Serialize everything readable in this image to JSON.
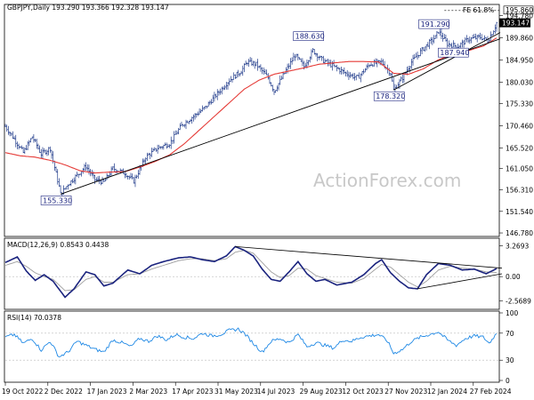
{
  "chart_data": [
    {
      "type": "candlestick",
      "header": "GBPJPY,Daily  193.290 193.366 192.328 193.147",
      "last_price": "193.147",
      "watermark": "ActionForex.com",
      "y_ticks": [
        "199.690",
        "194.780",
        "189.860",
        "184.950",
        "180.030",
        "175.330",
        "170.460",
        "165.520",
        "161.050",
        "156.310",
        "151.540",
        "146.780"
      ],
      "ylim": [
        146.2,
        197.0
      ],
      "x_ticks": [
        "19 Oct 2022",
        "2 Dec 2022",
        "17 Jan 2023",
        "2 Mar 2023",
        "17 Apr 2023",
        "31 May 2023",
        "14 Jul 2023",
        "29 Aug 2023",
        "12 Oct 2023",
        "27 Nov 2023",
        "12 Jan 2024",
        "27 Feb 2024"
      ],
      "annotations": [
        {
          "text": "155.330",
          "x": 37,
          "y": 155.33
        },
        {
          "text": "188.630",
          "x": 206,
          "y": 188.63
        },
        {
          "text": "178.320",
          "x": 260,
          "y": 178.32
        },
        {
          "text": "191.290",
          "x": 290,
          "y": 191.29
        },
        {
          "text": "187.940",
          "x": 303,
          "y": 187.94
        },
        {
          "text": "FE 61.8% 195.860",
          "x": 336,
          "y": 195.86
        }
      ],
      "price_anchors": [
        [
          0,
          170.3
        ],
        [
          6,
          167.5
        ],
        [
          12,
          164.5
        ],
        [
          18,
          168.0
        ],
        [
          24,
          164.2
        ],
        [
          30,
          165.5
        ],
        [
          36,
          157.0
        ],
        [
          37,
          155.33
        ],
        [
          42,
          157.5
        ],
        [
          48,
          159.5
        ],
        [
          54,
          161.5
        ],
        [
          60,
          158.5
        ],
        [
          66,
          158.0
        ],
        [
          72,
          161.0
        ],
        [
          80,
          160.0
        ],
        [
          86,
          158.2
        ],
        [
          94,
          163.5
        ],
        [
          102,
          165.5
        ],
        [
          110,
          166.5
        ],
        [
          118,
          170.5
        ],
        [
          126,
          172.5
        ],
        [
          134,
          174.5
        ],
        [
          142,
          177.5
        ],
        [
          150,
          180.5
        ],
        [
          158,
          182.5
        ],
        [
          162,
          184.5
        ],
        [
          168,
          184.0
        ],
        [
          176,
          181.0
        ],
        [
          180,
          178.0
        ],
        [
          186,
          181.5
        ],
        [
          194,
          186.0
        ],
        [
          200,
          183.5
        ],
        [
          206,
          187.0
        ],
        [
          212,
          185.0
        ],
        [
          220,
          183.5
        ],
        [
          228,
          182.0
        ],
        [
          236,
          181.0
        ],
        [
          244,
          184.0
        ],
        [
          252,
          184.5
        ],
        [
          258,
          182.0
        ],
        [
          260,
          178.32
        ],
        [
          266,
          181.0
        ],
        [
          272,
          184.5
        ],
        [
          280,
          187.5
        ],
        [
          288,
          190.0
        ],
        [
          290,
          191.29
        ],
        [
          296,
          188.5
        ],
        [
          303,
          187.94
        ],
        [
          310,
          189.5
        ],
        [
          318,
          190.0
        ],
        [
          323,
          189.2
        ],
        [
          327,
          191.5
        ],
        [
          329,
          193.147
        ]
      ],
      "ma_anchors": [
        [
          0,
          164.5
        ],
        [
          10,
          163.8
        ],
        [
          20,
          163.5
        ],
        [
          30,
          162.8
        ],
        [
          40,
          161.8
        ],
        [
          50,
          160.5
        ],
        [
          60,
          160.0
        ],
        [
          70,
          160.2
        ],
        [
          80,
          160.3
        ],
        [
          90,
          161.3
        ],
        [
          100,
          162.5
        ],
        [
          110,
          164.0
        ],
        [
          120,
          166.5
        ],
        [
          130,
          169.5
        ],
        [
          140,
          172.5
        ],
        [
          150,
          175.5
        ],
        [
          160,
          178.5
        ],
        [
          170,
          180.5
        ],
        [
          180,
          181.8
        ],
        [
          190,
          182.5
        ],
        [
          200,
          183.2
        ],
        [
          210,
          184.0
        ],
        [
          220,
          184.3
        ],
        [
          230,
          184.6
        ],
        [
          240,
          184.6
        ],
        [
          250,
          184.5
        ],
        [
          260,
          182.0
        ],
        [
          270,
          181.8
        ],
        [
          280,
          183.0
        ],
        [
          290,
          185.0
        ],
        [
          300,
          186.2
        ],
        [
          310,
          187.0
        ],
        [
          320,
          188.0
        ],
        [
          329,
          189.8
        ]
      ],
      "trendlines": [
        {
          "x1": 37,
          "y1": 155.33,
          "x2": 329,
          "y2": 189.6
        },
        {
          "x1": 260,
          "y1": 178.32,
          "x2": 329,
          "y2": 191.0
        }
      ]
    },
    {
      "type": "line",
      "header": "MACD(12,26,9)  0.8543 0.4438",
      "y_ticks": [
        "3.2693",
        "0.00",
        "-2.5689"
      ],
      "ylim": [
        -3.3,
        3.9
      ],
      "macd_anchors": [
        [
          0,
          1.5
        ],
        [
          8,
          2.1
        ],
        [
          14,
          0.6
        ],
        [
          20,
          -0.4
        ],
        [
          26,
          0.2
        ],
        [
          32,
          -0.5
        ],
        [
          40,
          -2.2
        ],
        [
          46,
          -1.3
        ],
        [
          54,
          0.5
        ],
        [
          60,
          0.2
        ],
        [
          66,
          -1.0
        ],
        [
          72,
          -0.7
        ],
        [
          82,
          0.7
        ],
        [
          90,
          0.3
        ],
        [
          98,
          1.2
        ],
        [
          106,
          1.6
        ],
        [
          116,
          2.0
        ],
        [
          124,
          2.1
        ],
        [
          132,
          1.8
        ],
        [
          140,
          1.6
        ],
        [
          148,
          2.2
        ],
        [
          154,
          3.2
        ],
        [
          160,
          2.8
        ],
        [
          166,
          2.2
        ],
        [
          172,
          0.8
        ],
        [
          178,
          -0.3
        ],
        [
          184,
          -0.5
        ],
        [
          190,
          0.5
        ],
        [
          196,
          1.6
        ],
        [
          202,
          0.3
        ],
        [
          208,
          -0.5
        ],
        [
          214,
          -0.3
        ],
        [
          222,
          -0.9
        ],
        [
          232,
          -0.6
        ],
        [
          240,
          0.2
        ],
        [
          248,
          1.4
        ],
        [
          252,
          1.8
        ],
        [
          258,
          0.4
        ],
        [
          264,
          -0.5
        ],
        [
          270,
          -1.2
        ],
        [
          276,
          -1.3
        ],
        [
          282,
          0.2
        ],
        [
          290,
          1.4
        ],
        [
          298,
          1.2
        ],
        [
          306,
          0.7
        ],
        [
          314,
          0.8
        ],
        [
          322,
          0.3
        ],
        [
          329,
          0.85
        ]
      ],
      "signal_anchors": [
        [
          0,
          1.2
        ],
        [
          8,
          1.6
        ],
        [
          14,
          1.1
        ],
        [
          20,
          0.4
        ],
        [
          26,
          0.0
        ],
        [
          32,
          -0.3
        ],
        [
          40,
          -1.5
        ],
        [
          46,
          -1.4
        ],
        [
          54,
          -0.3
        ],
        [
          60,
          0.0
        ],
        [
          66,
          -0.6
        ],
        [
          72,
          -0.6
        ],
        [
          82,
          0.2
        ],
        [
          90,
          0.3
        ],
        [
          98,
          0.8
        ],
        [
          106,
          1.2
        ],
        [
          116,
          1.7
        ],
        [
          124,
          1.9
        ],
        [
          132,
          1.9
        ],
        [
          140,
          1.7
        ],
        [
          148,
          1.9
        ],
        [
          154,
          2.6
        ],
        [
          160,
          2.8
        ],
        [
          166,
          2.5
        ],
        [
          172,
          1.5
        ],
        [
          178,
          0.5
        ],
        [
          184,
          -0.1
        ],
        [
          190,
          0.1
        ],
        [
          196,
          0.9
        ],
        [
          202,
          0.8
        ],
        [
          208,
          0.1
        ],
        [
          214,
          -0.2
        ],
        [
          222,
          -0.6
        ],
        [
          232,
          -0.7
        ],
        [
          240,
          -0.2
        ],
        [
          248,
          0.8
        ],
        [
          252,
          1.3
        ],
        [
          258,
          1.0
        ],
        [
          264,
          0.2
        ],
        [
          270,
          -0.6
        ],
        [
          276,
          -1.1
        ],
        [
          282,
          -0.5
        ],
        [
          290,
          0.7
        ],
        [
          298,
          1.1
        ],
        [
          306,
          0.9
        ],
        [
          314,
          0.8
        ],
        [
          322,
          0.5
        ],
        [
          329,
          0.44
        ]
      ],
      "trendlines": [
        {
          "x1": 154,
          "y1": 3.2,
          "x2": 329,
          "y2": 0.9
        },
        {
          "x1": 276,
          "y1": -1.3,
          "x2": 329,
          "y2": 0.3
        }
      ]
    },
    {
      "type": "line",
      "header": "RSI(14) 70.0378",
      "y_ticks": [
        "100",
        "70",
        "30",
        "0"
      ],
      "ylim": [
        0,
        100
      ],
      "rsi_anchors": [
        [
          0,
          64
        ],
        [
          6,
          68
        ],
        [
          12,
          55
        ],
        [
          18,
          62
        ],
        [
          24,
          45
        ],
        [
          30,
          58
        ],
        [
          36,
          35
        ],
        [
          42,
          42
        ],
        [
          48,
          58
        ],
        [
          54,
          52
        ],
        [
          60,
          46
        ],
        [
          66,
          42
        ],
        [
          72,
          60
        ],
        [
          78,
          56
        ],
        [
          84,
          50
        ],
        [
          90,
          62
        ],
        [
          96,
          58
        ],
        [
          102,
          66
        ],
        [
          108,
          60
        ],
        [
          114,
          68
        ],
        [
          120,
          64
        ],
        [
          126,
          62
        ],
        [
          132,
          70
        ],
        [
          138,
          66
        ],
        [
          144,
          68
        ],
        [
          150,
          74
        ],
        [
          156,
          76
        ],
        [
          160,
          70
        ],
        [
          166,
          55
        ],
        [
          172,
          42
        ],
        [
          178,
          58
        ],
        [
          184,
          62
        ],
        [
          190,
          56
        ],
        [
          196,
          68
        ],
        [
          202,
          50
        ],
        [
          208,
          56
        ],
        [
          214,
          52
        ],
        [
          220,
          48
        ],
        [
          226,
          60
        ],
        [
          232,
          58
        ],
        [
          238,
          64
        ],
        [
          244,
          66
        ],
        [
          250,
          68
        ],
        [
          256,
          58
        ],
        [
          260,
          40
        ],
        [
          266,
          46
        ],
        [
          272,
          58
        ],
        [
          278,
          64
        ],
        [
          284,
          68
        ],
        [
          290,
          72
        ],
        [
          296,
          60
        ],
        [
          302,
          52
        ],
        [
          308,
          62
        ],
        [
          314,
          66
        ],
        [
          320,
          64
        ],
        [
          324,
          55
        ],
        [
          329,
          70
        ]
      ]
    }
  ]
}
